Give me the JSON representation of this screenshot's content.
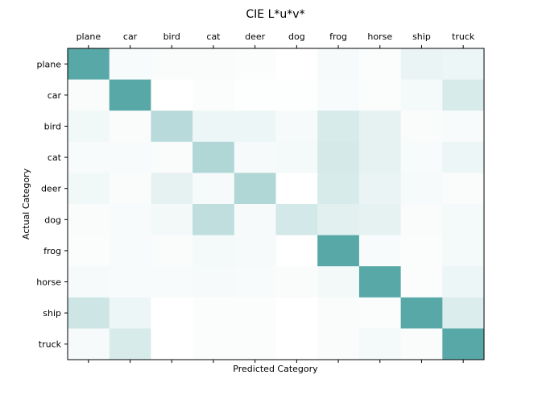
{
  "chart_data": {
    "type": "heatmap",
    "title": "CIE L*u*v*",
    "xlabel": "Predicted Category",
    "ylabel": "Actual Category",
    "x_categories": [
      "plane",
      "car",
      "bird",
      "cat",
      "deer",
      "dog",
      "frog",
      "horse",
      "ship",
      "truck"
    ],
    "y_categories": [
      "plane",
      "car",
      "bird",
      "cat",
      "deer",
      "dog",
      "frog",
      "horse",
      "ship",
      "truck"
    ],
    "color_low": "#ffffff",
    "color_high": "#4fa3a3",
    "values": [
      [
        0.95,
        0.04,
        0.03,
        0.03,
        0.02,
        0.0,
        0.05,
        0.02,
        0.12,
        0.1
      ],
      [
        0.03,
        0.95,
        0.0,
        0.02,
        0.01,
        0.01,
        0.04,
        0.02,
        0.06,
        0.22
      ],
      [
        0.08,
        0.03,
        0.4,
        0.1,
        0.1,
        0.05,
        0.22,
        0.14,
        0.03,
        0.04
      ],
      [
        0.04,
        0.04,
        0.03,
        0.45,
        0.05,
        0.06,
        0.24,
        0.14,
        0.04,
        0.1
      ],
      [
        0.08,
        0.03,
        0.14,
        0.05,
        0.45,
        0.0,
        0.22,
        0.12,
        0.05,
        0.03
      ],
      [
        0.03,
        0.04,
        0.07,
        0.36,
        0.05,
        0.25,
        0.16,
        0.14,
        0.03,
        0.06
      ],
      [
        0.02,
        0.04,
        0.03,
        0.06,
        0.05,
        0.0,
        0.95,
        0.04,
        0.02,
        0.06
      ],
      [
        0.05,
        0.04,
        0.04,
        0.05,
        0.04,
        0.03,
        0.07,
        0.95,
        0.02,
        0.1
      ],
      [
        0.28,
        0.1,
        0.0,
        0.02,
        0.02,
        0.0,
        0.03,
        0.02,
        0.95,
        0.2
      ],
      [
        0.05,
        0.22,
        0.0,
        0.02,
        0.02,
        0.0,
        0.03,
        0.06,
        0.03,
        0.95
      ]
    ]
  }
}
